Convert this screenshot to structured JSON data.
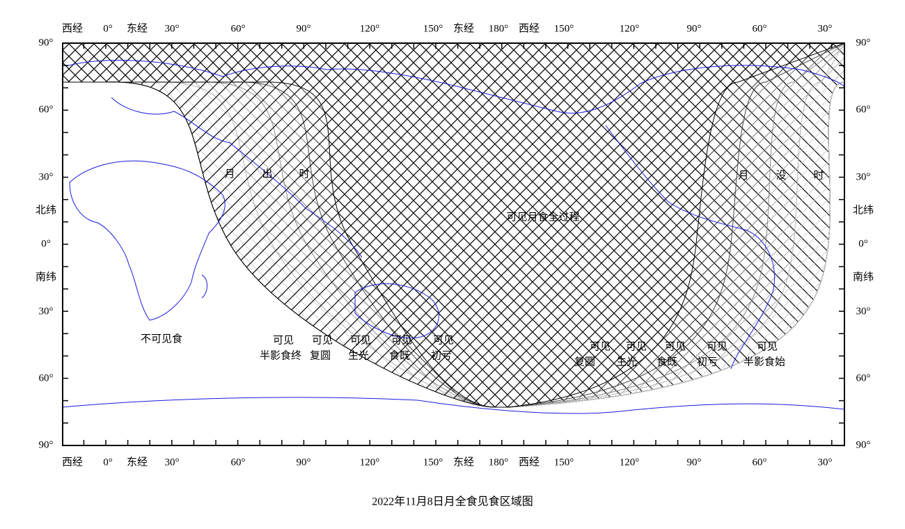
{
  "top_axis": [
    "西经",
    "0°",
    "东经",
    "30°",
    "60°",
    "90°",
    "120°",
    "150°",
    "东经",
    "180°",
    "西经",
    "150°",
    "120°",
    "90°",
    "60°",
    "30°"
  ],
  "bottom_axis": [
    "西经",
    "0°",
    "东经",
    "30°",
    "60°",
    "90°",
    "120°",
    "150°",
    "东经",
    "180°",
    "西经",
    "150°",
    "120°",
    "90°",
    "60°",
    "30°"
  ],
  "left_axis": [
    "90°",
    "60°",
    "30°",
    "北纬",
    "0°",
    "南纬",
    "30°",
    "60°",
    "90°"
  ],
  "right_axis": [
    "90°",
    "60°",
    "30°",
    "北纬",
    "0°",
    "南纬",
    "30°",
    "60°",
    "90°"
  ],
  "moonrise": [
    "月",
    "出",
    "时"
  ],
  "moonset": [
    "月",
    "没",
    "时"
  ],
  "full_visible": "可见月食全过程",
  "not_visible": "不可见食",
  "phases_west": [
    {
      "line1": "可见",
      "line2": "半影食终"
    },
    {
      "line1": "可见",
      "line2": "复圆"
    },
    {
      "line1": "可见",
      "line2": "生光"
    },
    {
      "line1": "可见",
      "line2": "食既"
    },
    {
      "line1": "可见",
      "line2": "初亏"
    }
  ],
  "phases_east": [
    {
      "line1": "可见",
      "line2": "复圆"
    },
    {
      "line1": "可见",
      "line2": "生光"
    },
    {
      "line1": "可见",
      "line2": "食既"
    },
    {
      "line1": "可见",
      "line2": "初亏"
    },
    {
      "line1": "可见",
      "line2": "半影食始"
    }
  ],
  "caption": "2022年11月8日月全食见食区域图"
}
